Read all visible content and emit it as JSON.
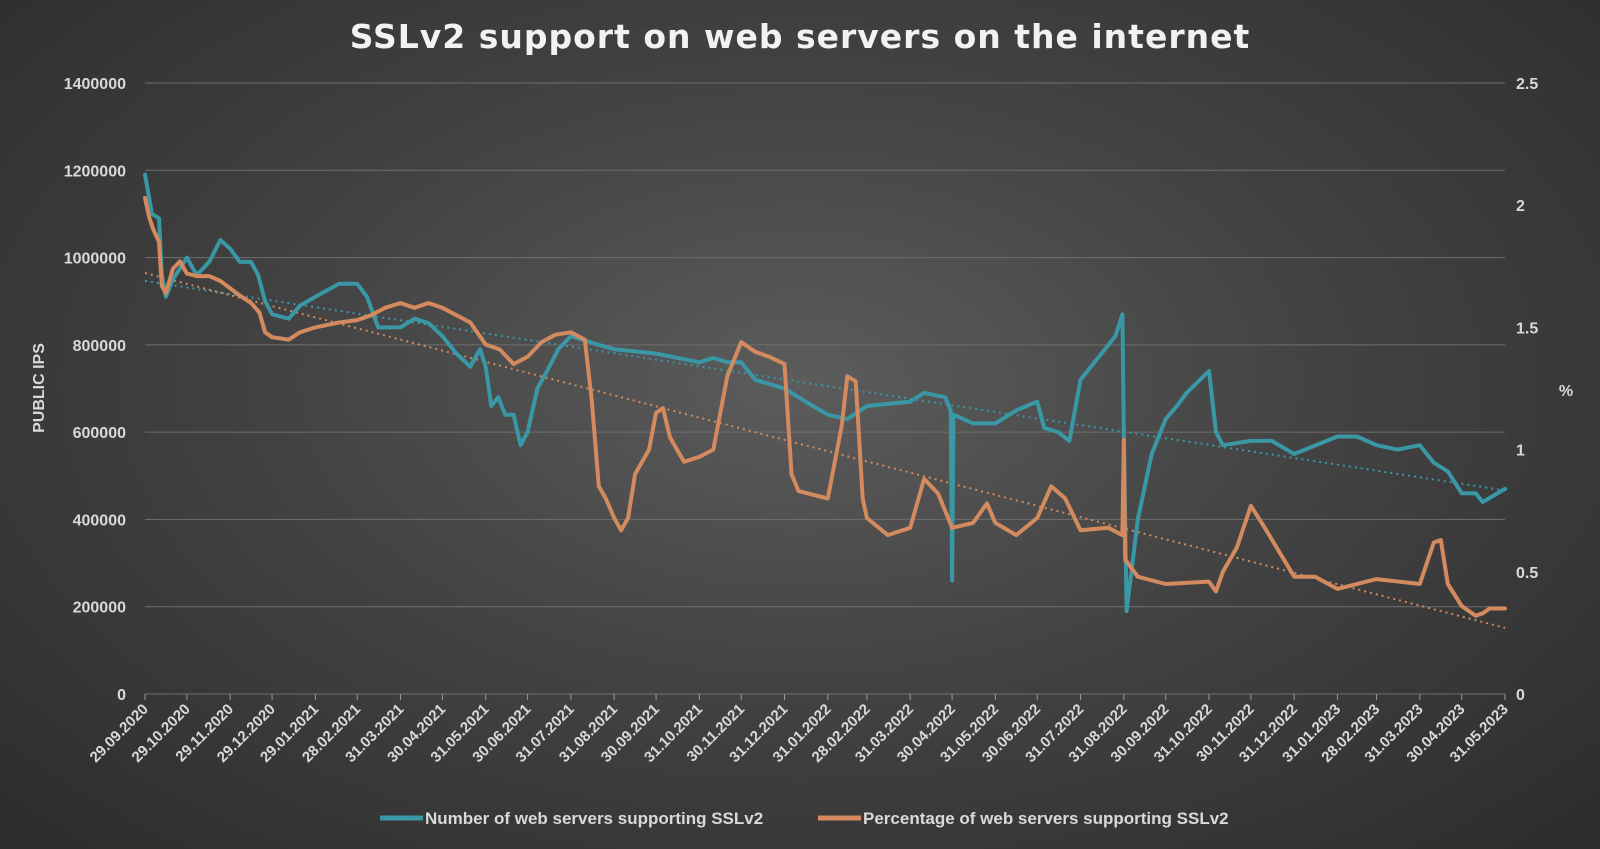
{
  "chart_data": {
    "type": "line",
    "title": "SSLv2 support on web servers on the internet",
    "ylabel_left": "PUBLIC IPS",
    "ylabel_right": "%",
    "ylim_left": [
      0,
      1400000
    ],
    "ylim_right": [
      0,
      2.5
    ],
    "yticks_left": [
      "0",
      "200000",
      "400000",
      "600000",
      "800000",
      "1000000",
      "1200000",
      "1400000"
    ],
    "yticks_right": [
      "0",
      "0.5",
      "1",
      "1.5",
      "2",
      "2.5"
    ],
    "x_tick_labels": [
      "29.09.2020",
      "29.10.2020",
      "29.11.2020",
      "29.12.2020",
      "29.01.2021",
      "28.02.2021",
      "31.03.2021",
      "30.04.2021",
      "31.05.2021",
      "30.06.2021",
      "31.07.2021",
      "31.08.2021",
      "30.09.2021",
      "31.10.2021",
      "30.11.2021",
      "31.12.2021",
      "31.01.2022",
      "28.02.2022",
      "31.03.2022",
      "30.04.2022",
      "31.05.2022",
      "30.06.2022",
      "31.07.2022",
      "31.08.2022",
      "30.09.2022",
      "31.10.2022",
      "30.11.2022",
      "31.12.2022",
      "31.01.2023",
      "28.02.2023",
      "31.03.2023",
      "30.04.2023",
      "31.05.2023"
    ],
    "grid": true,
    "legend_position": "bottom",
    "colors": {
      "count": "#3a97a6",
      "percentage": "#d28a5e"
    },
    "series": [
      {
        "name": "Number of web servers supporting SSLv2",
        "axis": "left",
        "points": [
          [
            "29.09.2020",
            1190000
          ],
          [
            "04.10.2020",
            1100000
          ],
          [
            "09.10.2020",
            1090000
          ],
          [
            "11.10.2020",
            960000
          ],
          [
            "14.10.2020",
            910000
          ],
          [
            "19.10.2020",
            950000
          ],
          [
            "29.10.2020",
            1000000
          ],
          [
            "05.11.2020",
            960000
          ],
          [
            "14.11.2020",
            990000
          ],
          [
            "22.11.2020",
            1040000
          ],
          [
            "29.11.2020",
            1020000
          ],
          [
            "06.12.2020",
            990000
          ],
          [
            "14.12.2020",
            990000
          ],
          [
            "19.12.2020",
            960000
          ],
          [
            "24.12.2020",
            900000
          ],
          [
            "29.12.2020",
            870000
          ],
          [
            "10.01.2021",
            860000
          ],
          [
            "18.01.2021",
            890000
          ],
          [
            "29.01.2021",
            910000
          ],
          [
            "15.02.2021",
            940000
          ],
          [
            "28.02.2021",
            940000
          ],
          [
            "07.03.2021",
            910000
          ],
          [
            "15.03.2021",
            840000
          ],
          [
            "31.03.2021",
            840000
          ],
          [
            "10.04.2021",
            860000
          ],
          [
            "20.04.2021",
            850000
          ],
          [
            "30.04.2021",
            820000
          ],
          [
            "10.05.2021",
            780000
          ],
          [
            "20.05.2021",
            750000
          ],
          [
            "27.05.2021",
            790000
          ],
          [
            "31.05.2021",
            750000
          ],
          [
            "04.06.2021",
            660000
          ],
          [
            "09.06.2021",
            680000
          ],
          [
            "14.06.2021",
            640000
          ],
          [
            "20.06.2021",
            640000
          ],
          [
            "25.06.2021",
            570000
          ],
          [
            "30.06.2021",
            600000
          ],
          [
            "07.07.2021",
            700000
          ],
          [
            "14.07.2021",
            740000
          ],
          [
            "22.07.2021",
            790000
          ],
          [
            "31.07.2021",
            820000
          ],
          [
            "10.08.2021",
            810000
          ],
          [
            "20.08.2021",
            800000
          ],
          [
            "31.08.2021",
            790000
          ],
          [
            "30.09.2021",
            780000
          ],
          [
            "31.10.2021",
            760000
          ],
          [
            "10.11.2021",
            770000
          ],
          [
            "20.11.2021",
            760000
          ],
          [
            "30.11.2021",
            760000
          ],
          [
            "10.12.2021",
            720000
          ],
          [
            "31.12.2021",
            700000
          ],
          [
            "15.01.2022",
            670000
          ],
          [
            "31.01.2022",
            640000
          ],
          [
            "14.02.2022",
            630000
          ],
          [
            "28.02.2022",
            660000
          ],
          [
            "31.03.2022",
            670000
          ],
          [
            "10.04.2022",
            690000
          ],
          [
            "25.04.2022",
            680000
          ],
          [
            "29.04.2022",
            650000
          ],
          [
            "30.04.2022",
            260000
          ],
          [
            "01.05.2022",
            640000
          ],
          [
            "15.05.2022",
            620000
          ],
          [
            "31.05.2022",
            620000
          ],
          [
            "15.06.2022",
            650000
          ],
          [
            "30.06.2022",
            670000
          ],
          [
            "05.07.2022",
            610000
          ],
          [
            "15.07.2022",
            600000
          ],
          [
            "23.07.2022",
            580000
          ],
          [
            "31.07.2022",
            720000
          ],
          [
            "10.08.2022",
            760000
          ],
          [
            "25.08.2022",
            820000
          ],
          [
            "30.08.2022",
            870000
          ],
          [
            "31.08.2022",
            600000
          ],
          [
            "02.09.2022",
            190000
          ],
          [
            "10.09.2022",
            400000
          ],
          [
            "20.09.2022",
            550000
          ],
          [
            "30.09.2022",
            630000
          ],
          [
            "08.10.2022",
            660000
          ],
          [
            "15.10.2022",
            690000
          ],
          [
            "31.10.2022",
            740000
          ],
          [
            "05.11.2022",
            600000
          ],
          [
            "10.11.2022",
            570000
          ],
          [
            "30.11.2022",
            580000
          ],
          [
            "15.12.2022",
            580000
          ],
          [
            "31.12.2022",
            550000
          ],
          [
            "31.01.2023",
            590000
          ],
          [
            "14.02.2023",
            590000
          ],
          [
            "28.02.2023",
            570000
          ],
          [
            "15.03.2023",
            560000
          ],
          [
            "31.03.2023",
            570000
          ],
          [
            "10.04.2023",
            530000
          ],
          [
            "20.04.2023",
            510000
          ],
          [
            "30.04.2023",
            460000
          ],
          [
            "10.05.2023",
            460000
          ],
          [
            "15.05.2023",
            440000
          ],
          [
            "31.05.2023",
            470000
          ]
        ]
      },
      {
        "name": "Percentage of web servers supporting SSLv2",
        "axis": "right",
        "points": [
          [
            "29.09.2020",
            2.03
          ],
          [
            "02.10.2020",
            1.95
          ],
          [
            "05.10.2020",
            1.9
          ],
          [
            "09.10.2020",
            1.85
          ],
          [
            "11.10.2020",
            1.67
          ],
          [
            "14.10.2020",
            1.64
          ],
          [
            "19.10.2020",
            1.74
          ],
          [
            "24.10.2020",
            1.77
          ],
          [
            "29.10.2020",
            1.72
          ],
          [
            "05.11.2020",
            1.71
          ],
          [
            "14.11.2020",
            1.71
          ],
          [
            "22.11.2020",
            1.69
          ],
          [
            "29.11.2020",
            1.66
          ],
          [
            "06.12.2020",
            1.63
          ],
          [
            "14.12.2020",
            1.6
          ],
          [
            "20.12.2020",
            1.56
          ],
          [
            "24.12.2020",
            1.48
          ],
          [
            "29.12.2020",
            1.46
          ],
          [
            "10.01.2021",
            1.45
          ],
          [
            "18.01.2021",
            1.48
          ],
          [
            "29.01.2021",
            1.5
          ],
          [
            "15.02.2021",
            1.52
          ],
          [
            "28.02.2021",
            1.53
          ],
          [
            "10.03.2021",
            1.55
          ],
          [
            "20.03.2021",
            1.58
          ],
          [
            "31.03.2021",
            1.6
          ],
          [
            "10.04.2021",
            1.58
          ],
          [
            "20.04.2021",
            1.6
          ],
          [
            "30.04.2021",
            1.58
          ],
          [
            "20.05.2021",
            1.52
          ],
          [
            "31.05.2021",
            1.43
          ],
          [
            "10.06.2021",
            1.41
          ],
          [
            "20.06.2021",
            1.35
          ],
          [
            "30.06.2021",
            1.38
          ],
          [
            "10.07.2021",
            1.44
          ],
          [
            "20.07.2021",
            1.47
          ],
          [
            "31.07.2021",
            1.48
          ],
          [
            "10.08.2021",
            1.45
          ],
          [
            "15.08.2021",
            1.2
          ],
          [
            "20.08.2021",
            0.85
          ],
          [
            "25.08.2021",
            0.8
          ],
          [
            "31.08.2021",
            0.72
          ],
          [
            "05.09.2021",
            0.67
          ],
          [
            "10.09.2021",
            0.72
          ],
          [
            "15.09.2021",
            0.9
          ],
          [
            "20.09.2021",
            0.95
          ],
          [
            "25.09.2021",
            1.0
          ],
          [
            "30.09.2021",
            1.15
          ],
          [
            "05.10.2021",
            1.17
          ],
          [
            "10.10.2021",
            1.05
          ],
          [
            "20.10.2021",
            0.95
          ],
          [
            "31.10.2021",
            0.97
          ],
          [
            "10.11.2021",
            1.0
          ],
          [
            "20.11.2021",
            1.3
          ],
          [
            "30.11.2021",
            1.44
          ],
          [
            "10.12.2021",
            1.4
          ],
          [
            "20.12.2021",
            1.38
          ],
          [
            "31.12.2021",
            1.35
          ],
          [
            "05.01.2022",
            0.9
          ],
          [
            "10.01.2022",
            0.83
          ],
          [
            "31.01.2022",
            0.8
          ],
          [
            "10.02.2022",
            1.1
          ],
          [
            "14.02.2022",
            1.3
          ],
          [
            "20.02.2022",
            1.28
          ],
          [
            "25.02.2022",
            0.8
          ],
          [
            "28.02.2022",
            0.72
          ],
          [
            "15.03.2022",
            0.65
          ],
          [
            "31.03.2022",
            0.68
          ],
          [
            "10.04.2022",
            0.88
          ],
          [
            "20.04.2022",
            0.82
          ],
          [
            "30.04.2022",
            0.68
          ],
          [
            "15.05.2022",
            0.7
          ],
          [
            "25.05.2022",
            0.78
          ],
          [
            "31.05.2022",
            0.7
          ],
          [
            "15.06.2022",
            0.65
          ],
          [
            "30.06.2022",
            0.72
          ],
          [
            "10.07.2022",
            0.85
          ],
          [
            "20.07.2022",
            0.8
          ],
          [
            "31.07.2022",
            0.67
          ],
          [
            "20.08.2022",
            0.68
          ],
          [
            "30.08.2022",
            0.65
          ],
          [
            "31.08.2022",
            1.04
          ],
          [
            "01.09.2022",
            0.55
          ],
          [
            "10.09.2022",
            0.48
          ],
          [
            "30.09.2022",
            0.45
          ],
          [
            "31.10.2022",
            0.46
          ],
          [
            "05.11.2022",
            0.42
          ],
          [
            "10.11.2022",
            0.5
          ],
          [
            "20.11.2022",
            0.6
          ],
          [
            "30.11.2022",
            0.77
          ],
          [
            "10.12.2022",
            0.68
          ],
          [
            "31.12.2022",
            0.48
          ],
          [
            "15.01.2023",
            0.48
          ],
          [
            "31.01.2023",
            0.43
          ],
          [
            "28.02.2023",
            0.47
          ],
          [
            "31.03.2023",
            0.45
          ],
          [
            "10.04.2023",
            0.62
          ],
          [
            "15.04.2023",
            0.63
          ],
          [
            "20.04.2023",
            0.45
          ],
          [
            "30.04.2023",
            0.36
          ],
          [
            "10.05.2023",
            0.32
          ],
          [
            "15.05.2023",
            0.33
          ],
          [
            "20.05.2023",
            0.35
          ],
          [
            "31.05.2023",
            0.35
          ]
        ]
      }
    ]
  }
}
